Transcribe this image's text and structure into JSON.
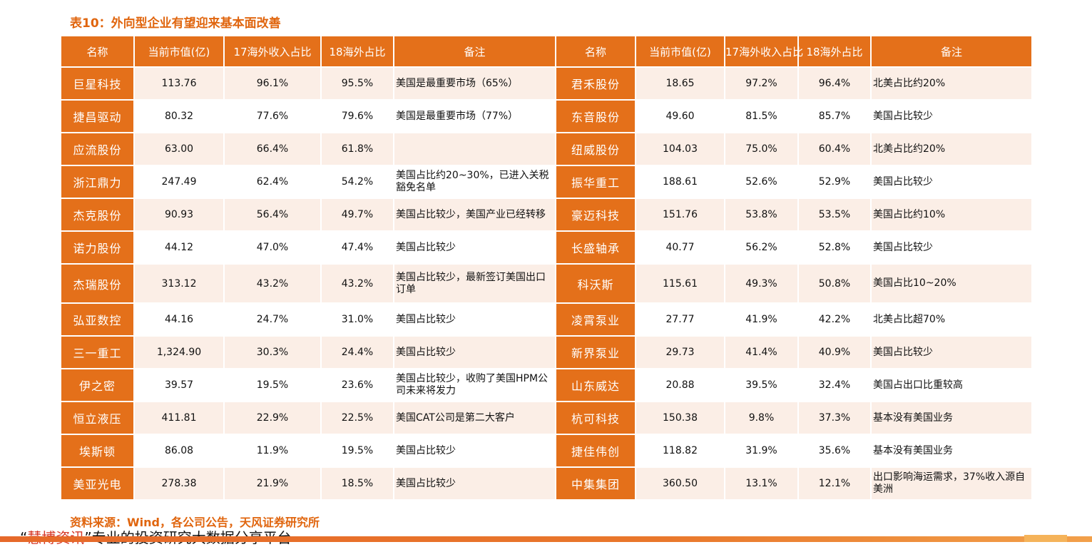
{
  "title": "表10：外向型企业有望迎来基本面改善",
  "headers": {
    "left": [
      "名称",
      "当前市值(亿)",
      "17海外收入占比",
      "18海外占比",
      "备注"
    ],
    "right": [
      "名称",
      "当前市值(亿)",
      "17海外收入占比",
      "18海外占比",
      "备注"
    ]
  },
  "rows": [
    {
      "l": [
        "巨星科技",
        "113.76",
        "96.1%",
        "95.5%",
        "美国是最重要市场（65%）"
      ],
      "r": [
        "君禾股份",
        "18.65",
        "97.2%",
        "96.4%",
        "北美占比约20%"
      ]
    },
    {
      "l": [
        "捷昌驱动",
        "80.32",
        "77.6%",
        "79.6%",
        "美国是最重要市场（77%）"
      ],
      "r": [
        "东音股份",
        "49.60",
        "81.5%",
        "85.7%",
        "美国占比较少"
      ]
    },
    {
      "l": [
        "应流股份",
        "63.00",
        "66.4%",
        "61.8%",
        ""
      ],
      "r": [
        "纽威股份",
        "104.03",
        "75.0%",
        "60.4%",
        "北美占比约20%"
      ]
    },
    {
      "l": [
        "浙江鼎力",
        "247.49",
        "62.4%",
        "54.2%",
        "美国占比约20~30%，已进入关税豁免名单"
      ],
      "r": [
        "振华重工",
        "188.61",
        "52.6%",
        "52.9%",
        "美国占比较少"
      ]
    },
    {
      "l": [
        "杰克股份",
        "90.93",
        "56.4%",
        "49.7%",
        "美国占比较少，美国产业已经转移"
      ],
      "r": [
        "豪迈科技",
        "151.76",
        "53.8%",
        "53.5%",
        "美国占比约10%"
      ]
    },
    {
      "l": [
        "诺力股份",
        "44.12",
        "47.0%",
        "47.4%",
        "美国占比较少"
      ],
      "r": [
        "长盛轴承",
        "40.77",
        "56.2%",
        "52.8%",
        "美国占比较少"
      ]
    },
    {
      "l": [
        "杰瑞股份",
        "313.12",
        "43.2%",
        "43.2%",
        "美国占比较少，最新签订美国出口订单"
      ],
      "r": [
        "科沃斯",
        "115.61",
        "49.3%",
        "50.8%",
        "美国占比10~20%"
      ]
    },
    {
      "l": [
        "弘亚数控",
        "44.16",
        "24.7%",
        "31.0%",
        "美国占比较少"
      ],
      "r": [
        "凌霄泵业",
        "27.77",
        "41.9%",
        "42.2%",
        "北美占比超70%"
      ]
    },
    {
      "l": [
        "三一重工",
        "1,324.90",
        "30.3%",
        "24.4%",
        "美国占比较少"
      ],
      "r": [
        "新界泵业",
        "29.73",
        "41.4%",
        "40.9%",
        "美国占比较少"
      ]
    },
    {
      "l": [
        "伊之密",
        "39.57",
        "19.5%",
        "23.6%",
        "美国占比较少，收购了美国HPM公司未来将发力"
      ],
      "r": [
        "山东威达",
        "20.88",
        "39.5%",
        "32.4%",
        "美国占出口比重较高"
      ]
    },
    {
      "l": [
        "恒立液压",
        "411.81",
        "22.9%",
        "22.5%",
        "美国CAT公司是第二大客户"
      ],
      "r": [
        "杭可科技",
        "150.38",
        "9.8%",
        "37.3%",
        "基本没有美国业务"
      ]
    },
    {
      "l": [
        "埃斯顿",
        "86.08",
        "11.9%",
        "19.5%",
        "美国占比较少"
      ],
      "r": [
        "捷佳伟创",
        "118.82",
        "31.9%",
        "35.6%",
        "基本没有美国业务"
      ]
    },
    {
      "l": [
        "美亚光电",
        "278.38",
        "21.9%",
        "18.5%",
        "美国占比较少"
      ],
      "r": [
        "中集集团",
        "360.50",
        "13.1%",
        "12.1%",
        "出口影响海运需求，37%收入源自美洲"
      ]
    }
  ],
  "source": "资料来源：Wind，各公司公告，天风证券研究所",
  "footer": {
    "quote_open": "“",
    "brand": "慧博资讯",
    "quote_close": "”",
    "text": "专业的投资研究大数据分享平台"
  },
  "colors": {
    "accent": "#e4701a",
    "row_tint": "#fbeee6",
    "title": "#e0650e"
  }
}
